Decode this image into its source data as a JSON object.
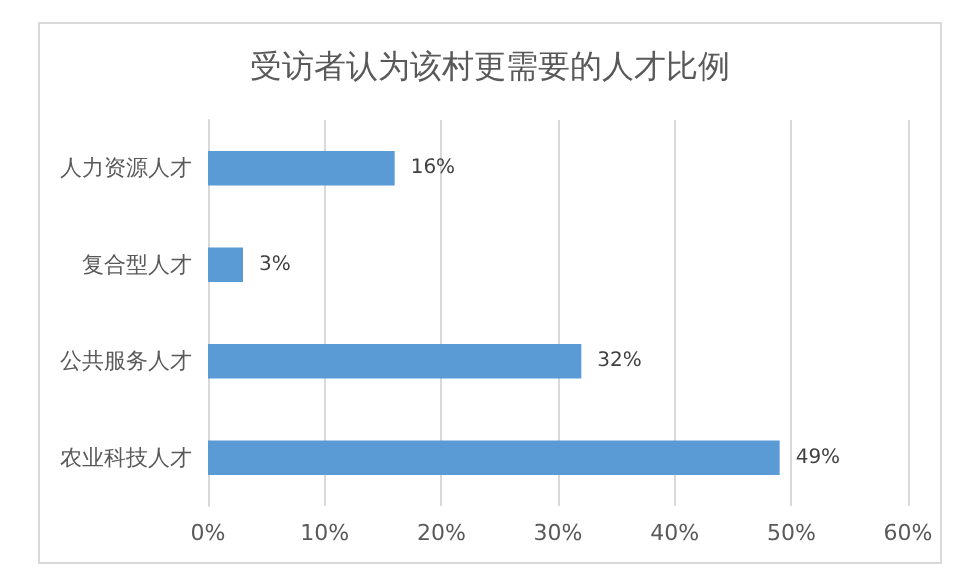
{
  "chart_data": {
    "type": "bar",
    "orientation": "horizontal",
    "title": "受访者认为该村更需要的人才比例",
    "categories": [
      "人力资源人才",
      "复合型人才",
      "公共服务人才",
      "农业科技人才"
    ],
    "values": [
      16,
      3,
      32,
      49
    ],
    "color": "#5b9bd5",
    "value_labels": [
      "16%",
      "3%",
      "32%",
      "49%"
    ],
    "xlim": [
      0,
      60
    ],
    "xticks": [
      {
        "value": 0,
        "label": "0%"
      },
      {
        "value": 10,
        "label": "10%"
      },
      {
        "value": 20,
        "label": "20%"
      },
      {
        "value": 30,
        "label": "30%"
      },
      {
        "value": 40,
        "label": "40%"
      },
      {
        "value": 50,
        "label": "50%"
      },
      {
        "value": 60,
        "label": "60%"
      }
    ],
    "grid": "x"
  }
}
